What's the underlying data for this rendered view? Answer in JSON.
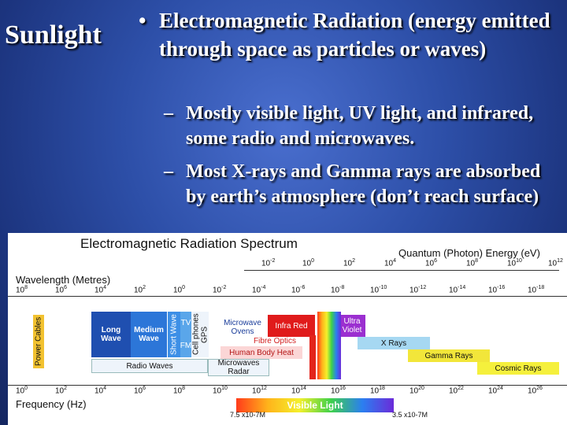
{
  "slide": {
    "title": "Sunlight",
    "bullet_symbol": "•",
    "bullet_text": "Electromagnetic Radiation (energy emitted through space as particles or waves)",
    "dash_symbol": "–",
    "sub_bullets": [
      "Mostly visible light, UV light, and infrared, some radio and microwaves.",
      "Most X-rays and Gamma rays are absorbed by earth’s atmosphere (don’t reach surface)"
    ]
  },
  "spectrum": {
    "title": "Electromagnetic Radiation Spectrum",
    "energy_label": "Quantum (Photon) Energy (eV)",
    "wavelength_label": "Wavelength (Metres)",
    "frequency_label": "Frequency (Hz)",
    "energy_ticks": [
      "10-2",
      "100",
      "102",
      "104",
      "106",
      "108",
      "1010",
      "1012"
    ],
    "wavelength_ticks": [
      "108",
      "106",
      "104",
      "102",
      "100",
      "10-2",
      "10-4",
      "10-6",
      "10-8",
      "10-10",
      "10-12",
      "10-14",
      "10-16",
      "10-18"
    ],
    "frequency_ticks": [
      "100",
      "102",
      "104",
      "106",
      "108",
      "1010",
      "1012",
      "1014",
      "1016",
      "1018",
      "1020",
      "1022",
      "1024",
      "1026"
    ],
    "bands": {
      "power_cables": "Power Cables",
      "long_wave": "Long Wave",
      "medium_wave": "Medium Wave",
      "short_wave": "Short Wave",
      "tv": "TV",
      "fm": "FM",
      "cell_phones": "Cell phones",
      "gps": "GPS",
      "microwave_ovens": "Microwave Ovens",
      "fibre_optics": "Fibre Optics",
      "human_body_heat": "Human Body Heat",
      "infra_red": "Infra Red",
      "ultra_violet": "Ultra Violet",
      "x_rays": "X Rays",
      "gamma_rays": "Gamma Rays",
      "cosmic_rays": "Cosmic Rays",
      "radio_waves": "Radio Waves",
      "microwaves_radar": "Microwaves Radar",
      "visible_light": "Visible Light"
    },
    "visible_start": "7.5 x10-7M",
    "visible_end": "3.5 x10-7M"
  }
}
